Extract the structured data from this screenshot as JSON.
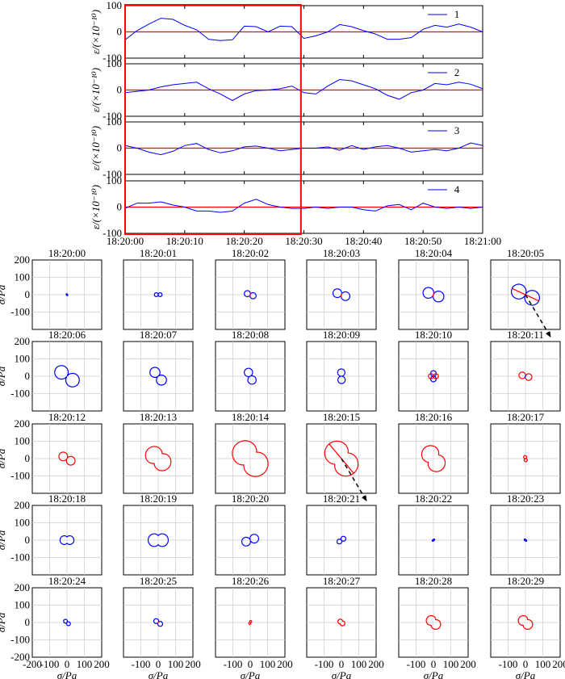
{
  "chart_data": {
    "type": "line",
    "strain_panels": {
      "ylabel": "ε/(×10⁻¹⁰)",
      "ylim": [
        -100,
        100
      ],
      "yticks": [
        -100,
        0,
        100
      ],
      "xlim_seconds": [
        0,
        60
      ],
      "xtick_labels": [
        "18:20:00",
        "18:20:10",
        "18:20:20",
        "18:20:30",
        "18:20:40",
        "18:20:50",
        "18:21:00"
      ],
      "highlight_window_seconds": [
        0,
        29.5
      ],
      "highlight_color": "#ff0000",
      "zero_line_color": "#ff0000",
      "series_color": "#0000ff",
      "series": [
        {
          "name": "1",
          "t": [
            0,
            2,
            4,
            6,
            8,
            10,
            12,
            14,
            16,
            18,
            20,
            22,
            24,
            26,
            28,
            30,
            32,
            34,
            36,
            38,
            40,
            42,
            44,
            46,
            48,
            50,
            52,
            54,
            56,
            58,
            60
          ],
          "values": [
            -30,
            5,
            30,
            52,
            48,
            25,
            8,
            -28,
            -33,
            -30,
            22,
            20,
            0,
            22,
            20,
            -25,
            -15,
            0,
            28,
            20,
            5,
            -8,
            -28,
            -28,
            -22,
            10,
            25,
            18,
            30,
            18,
            0
          ]
        },
        {
          "name": "2",
          "t": [
            0,
            2,
            4,
            6,
            8,
            10,
            12,
            14,
            16,
            18,
            20,
            22,
            24,
            26,
            28,
            30,
            32,
            34,
            36,
            38,
            40,
            42,
            44,
            46,
            48,
            50,
            52,
            54,
            56,
            58,
            60
          ],
          "values": [
            -10,
            -5,
            0,
            12,
            20,
            25,
            30,
            5,
            -15,
            -40,
            -15,
            -2,
            0,
            5,
            15,
            -10,
            -15,
            15,
            40,
            35,
            20,
            5,
            -20,
            -35,
            -10,
            0,
            25,
            20,
            30,
            22,
            5
          ]
        },
        {
          "name": "3",
          "t": [
            0,
            2,
            4,
            6,
            8,
            10,
            12,
            14,
            16,
            18,
            20,
            22,
            24,
            26,
            28,
            30,
            32,
            34,
            36,
            38,
            40,
            42,
            44,
            46,
            48,
            50,
            52,
            54,
            56,
            58,
            60
          ],
          "values": [
            10,
            0,
            -15,
            -25,
            -12,
            10,
            18,
            -5,
            -18,
            -10,
            5,
            8,
            0,
            -10,
            -5,
            0,
            0,
            5,
            -8,
            10,
            -5,
            5,
            10,
            0,
            -15,
            -10,
            -5,
            -10,
            0,
            20,
            10
          ]
        },
        {
          "name": "4",
          "t": [
            0,
            2,
            4,
            6,
            8,
            10,
            12,
            14,
            16,
            18,
            20,
            22,
            24,
            26,
            28,
            30,
            32,
            34,
            36,
            38,
            40,
            42,
            44,
            46,
            48,
            50,
            52,
            54,
            56,
            58,
            60
          ],
          "values": [
            -5,
            15,
            15,
            20,
            8,
            0,
            -15,
            -15,
            -20,
            -15,
            15,
            30,
            10,
            0,
            -5,
            -5,
            0,
            -5,
            0,
            0,
            -10,
            -15,
            5,
            10,
            -10,
            15,
            0,
            -5,
            0,
            -5,
            0
          ]
        }
      ]
    },
    "rose_panels": {
      "xlabel": "σ/Pa",
      "ylabel": "σ/Pa",
      "xlim": [
        -200,
        200
      ],
      "ylim": [
        -200,
        200
      ],
      "ticks": [
        -200,
        -100,
        0,
        100,
        200
      ],
      "grid": true,
      "arrow_panels": [
        "18:20:05",
        "18:20:15"
      ],
      "panels": [
        {
          "time": "18:20:00",
          "mag": 6,
          "angle": -60,
          "color": "#0000ff",
          "shape": "lobes"
        },
        {
          "time": "18:20:01",
          "mag": 22,
          "angle": 0,
          "color": "#0000ff",
          "shape": "lobes"
        },
        {
          "time": "18:20:02",
          "mag": 35,
          "angle": -20,
          "color": "#0000ff",
          "shape": "lobes",
          "cross": true
        },
        {
          "time": "18:20:03",
          "mag": 50,
          "angle": -20,
          "color": "#0000ff",
          "shape": "lobes",
          "cross": true
        },
        {
          "time": "18:20:04",
          "mag": 62,
          "angle": -20,
          "color": "#0000ff",
          "shape": "lobes",
          "cross": true
        },
        {
          "time": "18:20:05",
          "mag": 85,
          "angle": -25,
          "color": "#0000ff",
          "shape": "lobes",
          "line": "#ff0000"
        },
        {
          "time": "18:20:06",
          "mag": 78,
          "angle": -35,
          "color": "#0000ff",
          "shape": "lobes"
        },
        {
          "time": "18:20:07",
          "mag": 58,
          "angle": -50,
          "color": "#0000ff",
          "shape": "lobes"
        },
        {
          "time": "18:20:08",
          "mag": 48,
          "angle": -65,
          "color": "#0000ff",
          "shape": "lobes"
        },
        {
          "time": "18:20:09",
          "mag": 42,
          "angle": -88,
          "color": "#0000ff",
          "shape": "lobes"
        },
        {
          "time": "18:20:10",
          "mag": 32,
          "angle": 90,
          "color": "#0000ff",
          "shape": "cross",
          "color2": "#ff0000"
        },
        {
          "time": "18:20:11",
          "mag": 38,
          "angle": -15,
          "color": "#ff0000",
          "shape": "lobes",
          "cross": true,
          "crossColor": "#0000ff"
        },
        {
          "time": "18:20:12",
          "mag": 50,
          "angle": -30,
          "color": "#ff0000",
          "shape": "lobes"
        },
        {
          "time": "18:20:13",
          "mag": 80,
          "angle": -40,
          "color": "#ff0000",
          "shape": "peanut"
        },
        {
          "time": "18:20:14",
          "mag": 115,
          "angle": -45,
          "color": "#ff0000",
          "shape": "peanut"
        },
        {
          "time": "18:20:15",
          "mag": 110,
          "angle": -50,
          "color": "#ff0000",
          "shape": "peanut",
          "line": "#ff0000"
        },
        {
          "time": "18:20:16",
          "mag": 80,
          "angle": -55,
          "color": "#ff0000",
          "shape": "peanut"
        },
        {
          "time": "18:20:17",
          "mag": 18,
          "angle": -80,
          "color": "#ff0000",
          "shape": "lobes"
        },
        {
          "time": "18:20:18",
          "mag": 40,
          "angle": 0,
          "color": "#0000ff",
          "shape": "peanut"
        },
        {
          "time": "18:20:19",
          "mag": 58,
          "angle": 0,
          "color": "#0000ff",
          "shape": "peanut"
        },
        {
          "time": "18:20:20",
          "mag": 50,
          "angle": 20,
          "color": "#0000ff",
          "shape": "lobes"
        },
        {
          "time": "18:20:21",
          "mag": 28,
          "angle": 35,
          "color": "#0000ff",
          "shape": "lobes"
        },
        {
          "time": "18:20:22",
          "mag": 8,
          "angle": 40,
          "color": "#0000ff",
          "shape": "lobes"
        },
        {
          "time": "18:20:23",
          "mag": 8,
          "angle": -40,
          "color": "#0000ff",
          "shape": "lobes"
        },
        {
          "time": "18:20:24",
          "mag": 22,
          "angle": -40,
          "color": "#0000ff",
          "shape": "lobes"
        },
        {
          "time": "18:20:25",
          "mag": 28,
          "angle": -35,
          "color": "#0000ff",
          "shape": "lobes",
          "cross": true,
          "crossColor": "#ff0000"
        },
        {
          "time": "18:20:26",
          "mag": 12,
          "angle": 65,
          "color": "#ff0000",
          "shape": "lobes"
        },
        {
          "time": "18:20:27",
          "mag": 22,
          "angle": -40,
          "color": "#ff0000",
          "shape": "peanut"
        },
        {
          "time": "18:20:28",
          "mag": 45,
          "angle": -40,
          "color": "#ff0000",
          "shape": "peanut"
        },
        {
          "time": "18:20:29",
          "mag": 45,
          "angle": -40,
          "color": "#ff0000",
          "shape": "peanut"
        }
      ]
    }
  }
}
